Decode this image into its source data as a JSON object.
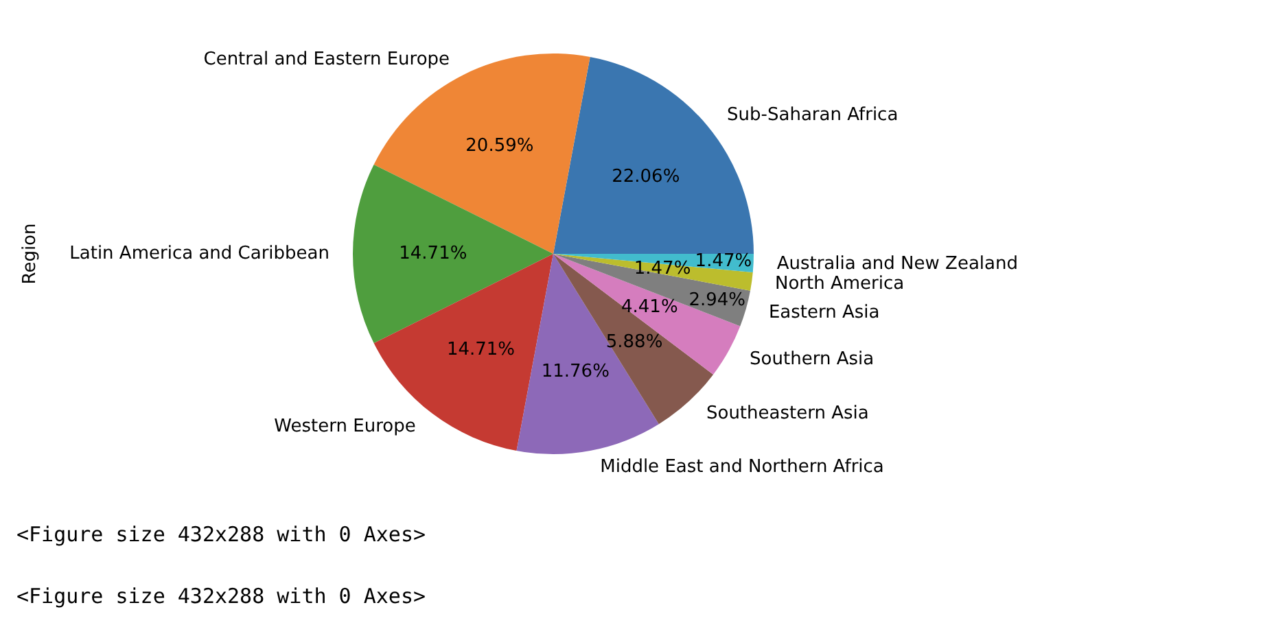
{
  "chart_data": {
    "type": "pie",
    "ylabel": "Region",
    "categories": [
      "Sub-Saharan Africa",
      "Central and Eastern Europe",
      "Latin America and Caribbean",
      "Western Europe",
      "Middle East and Northern Africa",
      "Southeastern Asia",
      "Southern Asia",
      "Eastern Asia",
      "North America",
      "Australia and New Zealand"
    ],
    "values": [
      22.06,
      20.59,
      14.71,
      14.71,
      11.76,
      5.88,
      4.41,
      2.94,
      1.47,
      1.47
    ],
    "value_labels": [
      "22.06%",
      "20.59%",
      "14.71%",
      "14.71%",
      "11.76%",
      "5.88%",
      "4.41%",
      "2.94%",
      "1.47%",
      "1.47%"
    ],
    "colors": [
      "#3a76b0",
      "#ef8636",
      "#4f9e3e",
      "#c53a32",
      "#8d69b8",
      "#85594e",
      "#d57dbe",
      "#7f7f7f",
      "#bcbd2d",
      "#42bccd"
    ],
    "annotations": [
      "<Figure size 432x288 with 0 Axes>",
      "<Figure size 432x288 with 0 Axes>"
    ]
  }
}
